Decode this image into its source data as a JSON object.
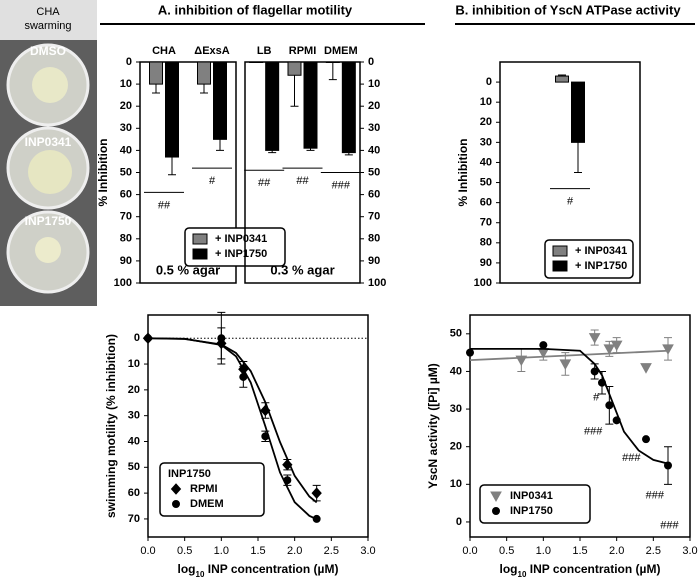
{
  "headers": [
    "A. inhibition of flagellar motility",
    "B. inhibition of YscN ATPase activity"
  ],
  "photo": {
    "caption": [
      "CHA",
      "swarming"
    ],
    "dishes": [
      "DMSO",
      "INP0341",
      "INP1750"
    ]
  },
  "chart_data": [
    {
      "type": "bar",
      "ylabel": "% Inhibition",
      "categories": [
        "CHA",
        "ΔExsA"
      ],
      "series": [
        {
          "name": "+ INP0341",
          "color": "#808080",
          "values": [
            10,
            10
          ],
          "errors": [
            4,
            4
          ]
        },
        {
          "name": "+ INP1750",
          "color": "#000000",
          "values": [
            43,
            35
          ],
          "errors": [
            8,
            5
          ]
        }
      ],
      "ylim": [
        0,
        100
      ],
      "yticks": [
        0,
        10,
        20,
        30,
        40,
        50,
        60,
        70,
        80,
        90,
        100
      ],
      "y_inverted": true,
      "yaxis_side": "left",
      "significance": [
        "##",
        "#"
      ],
      "annotation": "0.5 % agar",
      "legend": "bottom"
    },
    {
      "type": "bar",
      "categories": [
        "LB",
        "RPMI",
        "DMEM"
      ],
      "series": [
        {
          "color": "#808080",
          "values": [
            0,
            6,
            0
          ],
          "errors": [
            0,
            14,
            8
          ]
        },
        {
          "color": "#000000",
          "values": [
            40,
            39,
            41
          ],
          "errors": [
            1,
            1,
            1
          ]
        }
      ],
      "ylim": [
        0,
        100
      ],
      "yticks": [
        0,
        10,
        20,
        30,
        40,
        50,
        60,
        70,
        80,
        90,
        100
      ],
      "y_inverted": true,
      "yaxis_side": "right",
      "significance": [
        "##",
        "##",
        "###"
      ],
      "annotation": "0.3 % agar"
    },
    {
      "type": "bar",
      "ylabel": "% Inhibition",
      "categories": [
        null
      ],
      "series": [
        {
          "name": "+ INP0341",
          "color": "#808080",
          "values": [
            -3
          ],
          "errors": [
            0.5
          ]
        },
        {
          "name": "+ INP1750",
          "color": "#000000",
          "values": [
            30
          ],
          "errors": [
            15
          ]
        }
      ],
      "ylim": [
        -10,
        100
      ],
      "yticks": [
        0,
        10,
        20,
        30,
        40,
        50,
        60,
        70,
        80,
        90,
        100
      ],
      "y_inverted": true,
      "yaxis_side": "left",
      "significance": [
        "#"
      ],
      "legend": "bottom"
    },
    {
      "type": "scatter",
      "ylabel": "swimming motility (% inhibition)",
      "xlabel": [
        "log",
        "10",
        " INP concentration (µM)"
      ],
      "xlim": [
        0,
        3
      ],
      "xticks": [
        {
          "value": 0,
          "label": "0.0"
        },
        {
          "value": 0.5,
          "label": "0.5"
        },
        {
          "value": 1,
          "label": "1.0"
        },
        {
          "value": 1.5,
          "label": "1.5"
        },
        {
          "value": 2,
          "label": "2.0"
        },
        {
          "value": 2.5,
          "label": "2.5"
        },
        {
          "value": 3,
          "label": "3.0"
        }
      ],
      "ylim": [
        -9,
        77
      ],
      "yticks": [
        0,
        10,
        20,
        30,
        40,
        50,
        60,
        70
      ],
      "y_inverted": true,
      "zero_line": "dotted",
      "legend_title": "INP1750",
      "legend": "lower left",
      "series": [
        {
          "name": "RPMI",
          "color": "#000000",
          "marker": "diamond",
          "x": [
            0,
            1,
            1.3,
            1.6,
            1.9,
            2.3
          ],
          "values": [
            0,
            2,
            12,
            28,
            49,
            60
          ],
          "errors": [
            0,
            6,
            3,
            3,
            2,
            3
          ],
          "fit_x": [
            0,
            0.5,
            1,
            1.2,
            1.4,
            1.6,
            1.8,
            2.0,
            2.2,
            2.3
          ],
          "fit_values": [
            0,
            0.3,
            2.4,
            5.7,
            12.7,
            24.8,
            40.2,
            53.3,
            61.3,
            63.6
          ]
        },
        {
          "name": "DMEM",
          "color": "#000000",
          "marker": "circle",
          "x": [
            0,
            1,
            1.3,
            1.6,
            1.9,
            2.3
          ],
          "values": [
            0,
            0,
            15,
            38,
            55,
            70
          ],
          "errors": [
            0,
            10,
            4,
            2,
            2,
            0
          ],
          "fit_x": [
            0,
            0.5,
            1,
            1.2,
            1.4,
            1.6,
            1.8,
            2.0,
            2.2,
            2.3
          ],
          "fit_values": [
            0,
            0.2,
            2.6,
            7.0,
            17.1,
            34.1,
            52,
            63.5,
            68.8,
            70.1
          ]
        }
      ]
    },
    {
      "type": "scatter",
      "ylabel": "YscN activity ([Pi] µM)",
      "xlabel": [
        "log",
        "10",
        " INP concentration (µM)"
      ],
      "xlim": [
        0,
        3
      ],
      "xticks": [
        {
          "value": 0,
          "label": "0.0"
        },
        {
          "value": 0.5,
          "label": "0.5"
        },
        {
          "value": 1,
          "label": "1.0"
        },
        {
          "value": 1.5,
          "label": "1.5"
        },
        {
          "value": 2,
          "label": "2.0"
        },
        {
          "value": 2.5,
          "label": "2.5"
        },
        {
          "value": 3,
          "label": "3.0"
        }
      ],
      "ylim": [
        -4,
        55
      ],
      "yticks": [
        0,
        10,
        20,
        30,
        40,
        50
      ],
      "y_inverted": false,
      "legend": "lower left",
      "series": [
        {
          "name": "INP0341",
          "color": "#808080",
          "marker": "triangle-down",
          "x": [
            0.7,
            1,
            1.3,
            1.7,
            1.9,
            2.0,
            2.4,
            2.7
          ],
          "values": [
            43,
            45,
            42,
            49,
            46,
            47,
            41,
            46
          ],
          "errors": [
            3,
            2,
            3,
            2,
            2,
            2,
            0,
            3
          ],
          "fit_x": [
            0,
            2.7
          ],
          "fit_values": [
            43,
            45.5
          ]
        },
        {
          "name": "INP1750",
          "color": "#000000",
          "marker": "circle",
          "x": [
            0,
            1,
            1.7,
            1.8,
            1.9,
            2.0,
            2.4,
            2.7
          ],
          "values": [
            45,
            47,
            40,
            37,
            31,
            27,
            22,
            15
          ],
          "errors": [
            0,
            0,
            2,
            3,
            5,
            0,
            0,
            5
          ],
          "fit_x": [
            0,
            1,
            1.5,
            1.7,
            1.8,
            1.9,
            2.0,
            2.1,
            2.3,
            2.5,
            2.7
          ],
          "fit_values": [
            46,
            46,
            45.5,
            42,
            39,
            34,
            29,
            24,
            19,
            16.5,
            15.5
          ]
        }
      ],
      "annotations": [
        {
          "text": "#",
          "x": 1.72,
          "y": 33
        },
        {
          "text": "###",
          "x": 1.68,
          "y": 24
        },
        {
          "text": "###",
          "x": 2.2,
          "y": 17
        },
        {
          "text": "###",
          "x": 2.52,
          "y": 7
        },
        {
          "text": "###",
          "x": 2.72,
          "y": -1
        }
      ]
    }
  ]
}
